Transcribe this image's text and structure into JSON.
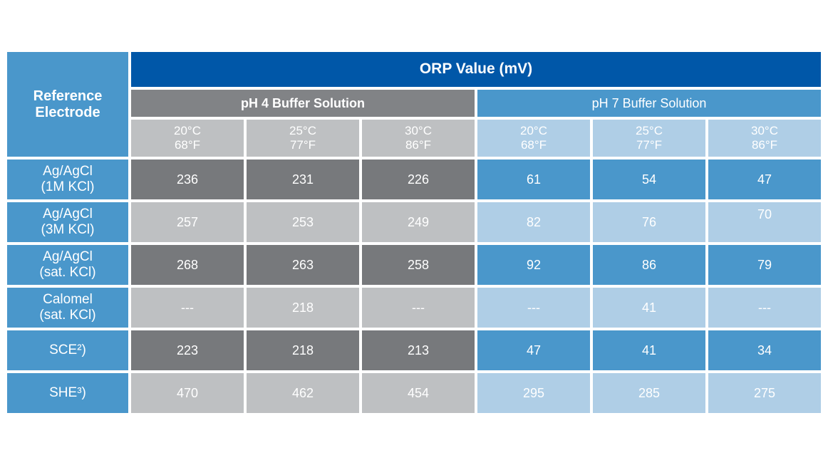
{
  "title": "ORP Value (mV)",
  "corner_header": {
    "line1": "Reference",
    "line2": "Electrode"
  },
  "groups": [
    {
      "label": "pH 4 Buffer Solution"
    },
    {
      "label": "pH 7 Buffer Solution"
    }
  ],
  "temp_headers": [
    {
      "c": "20°C",
      "f": "68°F"
    },
    {
      "c": "25°C",
      "f": "77°F"
    },
    {
      "c": "30°C",
      "f": "86°F"
    },
    {
      "c": "20°C",
      "f": "68°F"
    },
    {
      "c": "25°C",
      "f": "77°F"
    },
    {
      "c": "30°C",
      "f": "86°F"
    }
  ],
  "rows": [
    {
      "label1": "Ag/AgCl",
      "label2": "(1M KCl)",
      "values": [
        "236",
        "231",
        "226",
        "61",
        "54",
        "47"
      ]
    },
    {
      "label1": "Ag/AgCl",
      "label2": "(3M KCl)",
      "values": [
        "257",
        "253",
        "249",
        "82",
        "76",
        "70"
      ]
    },
    {
      "label1": "Ag/AgCl",
      "label2": "(sat. KCl)",
      "values": [
        "268",
        "263",
        "258",
        "92",
        "86",
        "79"
      ]
    },
    {
      "label1": "Calomel",
      "label2": "(sat. KCl)",
      "values": [
        "---",
        "218",
        "---",
        "---",
        "41",
        "---"
      ]
    },
    {
      "label1": "SCE²)",
      "label2": "",
      "values": [
        "223",
        "218",
        "213",
        "47",
        "41",
        "34"
      ]
    },
    {
      "label1": "SHE³)",
      "label2": "",
      "values": [
        "470",
        "462",
        "454",
        "295",
        "285",
        "275"
      ]
    }
  ],
  "colors": {
    "header_dark_blue": "#0057A8",
    "medium_blue": "#4A97CB",
    "light_blue": "#AFCEE6",
    "header_gray": "#818386",
    "dark_gray": "#77797C",
    "light_gray": "#BEC0C2",
    "text": "#FFFFFF",
    "background": "#FFFFFF"
  },
  "chart_data": {
    "type": "table",
    "title": "ORP Value (mV)",
    "row_header": "Reference Electrode",
    "column_groups": [
      "pH 4 Buffer Solution",
      "pH 7 Buffer Solution"
    ],
    "columns": [
      "pH4 20°C/68°F",
      "pH4 25°C/77°F",
      "pH4 30°C/86°F",
      "pH7 20°C/68°F",
      "pH7 25°C/77°F",
      "pH7 30°C/86°F"
    ],
    "categories": [
      "Ag/AgCl (1M KCl)",
      "Ag/AgCl (3M KCl)",
      "Ag/AgCl (sat. KCl)",
      "Calomel (sat. KCl)",
      "SCE²)",
      "SHE³)"
    ],
    "series": [
      {
        "name": "Ag/AgCl (1M KCl)",
        "values": [
          236,
          231,
          226,
          61,
          54,
          47
        ]
      },
      {
        "name": "Ag/AgCl (3M KCl)",
        "values": [
          257,
          253,
          249,
          82,
          76,
          70
        ]
      },
      {
        "name": "Ag/AgCl (sat. KCl)",
        "values": [
          268,
          263,
          258,
          92,
          86,
          79
        ]
      },
      {
        "name": "Calomel (sat. KCl)",
        "values": [
          null,
          218,
          null,
          null,
          41,
          null
        ]
      },
      {
        "name": "SCE²)",
        "values": [
          223,
          218,
          213,
          47,
          41,
          34
        ]
      },
      {
        "name": "SHE³)",
        "values": [
          470,
          462,
          454,
          295,
          285,
          275
        ]
      }
    ],
    "missing_value_marker": "---",
    "units": "mV"
  }
}
